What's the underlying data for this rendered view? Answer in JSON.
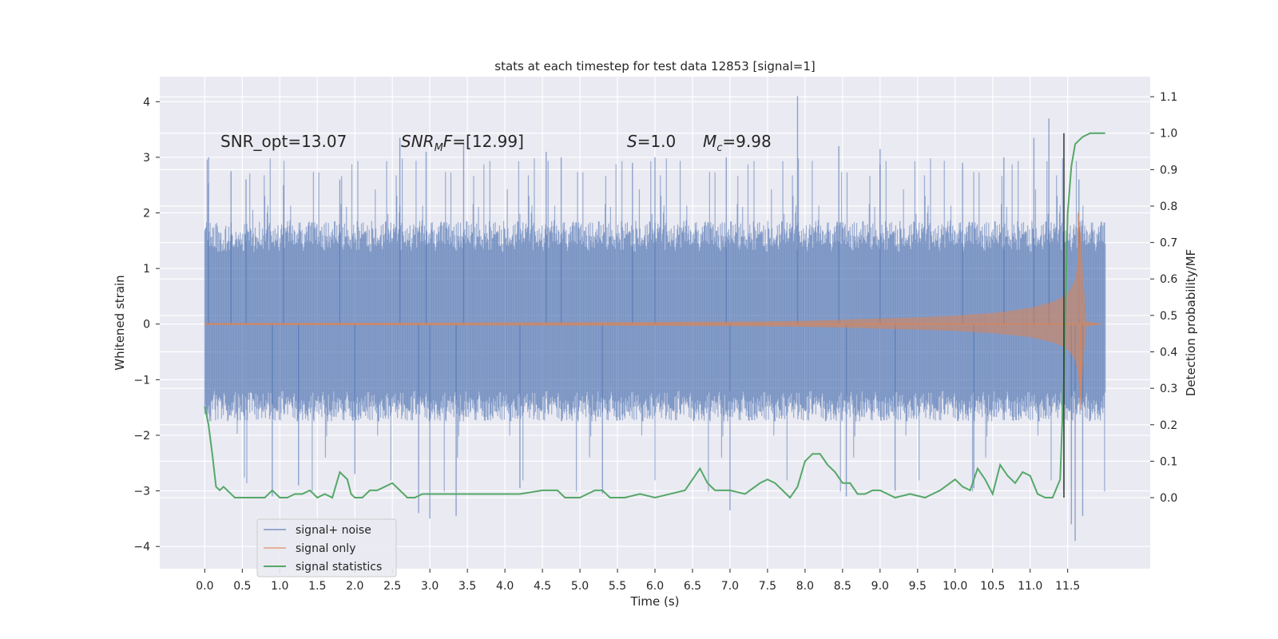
{
  "chart_data": {
    "type": "line",
    "title": "stats at each timestep for test data 12853 [signal=1]",
    "xlabel": "Time (s)",
    "ylabel_left": "Whitened strain",
    "ylabel_right": "Detection probability/MF",
    "xlim": [
      -0.6,
      12.6
    ],
    "ylim_left": [
      -4.4,
      4.45
    ],
    "ylim_right": [
      -0.195,
      1.155
    ],
    "x_ticks": [
      "0.0",
      "0.5",
      "1.0",
      "1.5",
      "2.0",
      "2.5",
      "3.0",
      "3.5",
      "4.0",
      "4.5",
      "5.0",
      "5.5",
      "6.0",
      "6.5",
      "7.0",
      "7.5",
      "8.0",
      "8.5",
      "9.0",
      "9.5",
      "10.0",
      "10.5",
      "11.0",
      "11.5"
    ],
    "y_ticks_left": [
      "4",
      "3",
      "2",
      "1",
      "0",
      "−1",
      "−2",
      "−3",
      "−4"
    ],
    "y_ticks_right": [
      "1.1",
      "1.0",
      "0.9",
      "0.8",
      "0.7",
      "0.6",
      "0.5",
      "0.4",
      "0.3",
      "0.2",
      "0.1",
      "0.0"
    ],
    "grid": true,
    "legend_position": "lower-left",
    "annotations": {
      "snr_opt": "SNR_opt=13.07",
      "snr_mf_name": "SNR",
      "snr_mf_sub": "M",
      "snr_mf_rest": "F",
      "snr_mf_value": "=[12.99]",
      "s_name": "S",
      "s_value": "=1.0",
      "mc_name": "M",
      "mc_sub": "c",
      "mc_value": "=9.98"
    },
    "marker_line_x": 11.45,
    "series": [
      {
        "name": "signal+ noise",
        "color": "#4c72b0",
        "envelope_upper_typical": 1.3,
        "envelope_lower_typical": -1.2,
        "peaks": [
          [
            0.05,
            3.0
          ],
          [
            0.35,
            2.75
          ],
          [
            0.55,
            2.6
          ],
          [
            1.05,
            2.5
          ],
          [
            1.8,
            2.6
          ],
          [
            2.6,
            3.35
          ],
          [
            2.95,
            3.1
          ],
          [
            3.45,
            3.25
          ],
          [
            4.55,
            3.1
          ],
          [
            4.75,
            3.0
          ],
          [
            5.7,
            2.9
          ],
          [
            6.0,
            3.0
          ],
          [
            6.95,
            3.0
          ],
          [
            7.9,
            4.1
          ],
          [
            8.45,
            3.2
          ],
          [
            9.0,
            3.15
          ],
          [
            10.1,
            2.9
          ],
          [
            10.65,
            3.0
          ],
          [
            11.05,
            3.35
          ],
          [
            11.25,
            3.7
          ],
          [
            11.65,
            2.6
          ]
        ],
        "troughs": [
          [
            0.9,
            -3.1
          ],
          [
            1.25,
            -2.9
          ],
          [
            2.0,
            -2.7
          ],
          [
            2.85,
            -3.4
          ],
          [
            3.0,
            -3.5
          ],
          [
            3.35,
            -3.45
          ],
          [
            4.2,
            -2.95
          ],
          [
            5.3,
            -3.05
          ],
          [
            7.0,
            -3.35
          ],
          [
            8.55,
            -3.1
          ],
          [
            9.2,
            -3.0
          ],
          [
            10.25,
            -2.95
          ],
          [
            11.45,
            -3.0
          ],
          [
            11.55,
            -3.6
          ],
          [
            11.6,
            -3.9
          ],
          [
            11.7,
            -3.45
          ]
        ]
      },
      {
        "name": "signal only",
        "color": "#dd8452",
        "x": [
          0.0,
          2.0,
          4.0,
          6.0,
          7.0,
          7.5,
          8.0,
          8.5,
          9.0,
          9.5,
          10.0,
          10.5,
          10.8,
          11.0,
          11.2,
          11.3,
          11.4,
          11.45,
          11.5,
          11.55,
          11.6,
          11.62,
          11.64,
          11.66,
          11.68,
          11.7,
          11.75,
          11.95
        ],
        "amplitude": [
          0.02,
          0.025,
          0.03,
          0.04,
          0.045,
          0.05,
          0.06,
          0.08,
          0.1,
          0.12,
          0.15,
          0.2,
          0.25,
          0.29,
          0.36,
          0.4,
          0.46,
          0.5,
          0.56,
          0.65,
          0.8,
          0.95,
          1.15,
          1.5,
          1.9,
          1.0,
          0.05,
          0.0
        ],
        "peak": [
          11.64,
          2.0
        ],
        "trough": [
          11.68,
          -1.55
        ]
      },
      {
        "name": "signal statistics",
        "color": "#55a868",
        "axis": "right",
        "x": [
          0.0,
          0.05,
          0.1,
          0.15,
          0.2,
          0.25,
          0.3,
          0.35,
          0.4,
          0.45,
          0.5,
          0.6,
          0.7,
          0.8,
          0.9,
          1.0,
          1.1,
          1.2,
          1.3,
          1.4,
          1.5,
          1.6,
          1.7,
          1.8,
          1.85,
          1.9,
          1.95,
          2.0,
          2.1,
          2.2,
          2.3,
          2.4,
          2.5,
          2.6,
          2.7,
          2.8,
          2.9,
          3.0,
          3.2,
          3.5,
          3.8,
          4.0,
          4.2,
          4.5,
          4.7,
          4.8,
          5.0,
          5.2,
          5.3,
          5.4,
          5.5,
          5.6,
          5.8,
          6.0,
          6.2,
          6.4,
          6.5,
          6.6,
          6.7,
          6.8,
          6.9,
          7.0,
          7.2,
          7.4,
          7.5,
          7.6,
          7.7,
          7.8,
          7.9,
          8.0,
          8.1,
          8.2,
          8.3,
          8.4,
          8.5,
          8.6,
          8.7,
          8.8,
          8.9,
          9.0,
          9.2,
          9.4,
          9.6,
          9.8,
          10.0,
          10.1,
          10.2,
          10.3,
          10.4,
          10.5,
          10.6,
          10.7,
          10.8,
          10.9,
          11.0,
          11.1,
          11.2,
          11.3,
          11.4,
          11.45,
          11.5,
          11.55,
          11.6,
          11.7,
          11.8,
          11.9,
          12.0
        ],
        "y": [
          0.25,
          0.2,
          0.12,
          0.03,
          0.02,
          0.03,
          0.02,
          0.01,
          0.0,
          0.0,
          0.0,
          0.0,
          0.0,
          0.0,
          0.02,
          0.0,
          0.0,
          0.01,
          0.01,
          0.02,
          0.0,
          0.01,
          0.0,
          0.07,
          0.06,
          0.05,
          0.01,
          0.0,
          0.0,
          0.02,
          0.02,
          0.03,
          0.04,
          0.02,
          0.0,
          0.0,
          0.01,
          0.01,
          0.01,
          0.01,
          0.01,
          0.01,
          0.01,
          0.02,
          0.02,
          0.0,
          0.0,
          0.02,
          0.02,
          0.0,
          0.0,
          0.0,
          0.01,
          0.0,
          0.01,
          0.02,
          0.05,
          0.08,
          0.04,
          0.02,
          0.02,
          0.02,
          0.01,
          0.04,
          0.05,
          0.04,
          0.02,
          0.0,
          0.03,
          0.1,
          0.12,
          0.12,
          0.09,
          0.07,
          0.04,
          0.04,
          0.01,
          0.01,
          0.02,
          0.02,
          0.0,
          0.01,
          0.0,
          0.02,
          0.05,
          0.03,
          0.02,
          0.08,
          0.05,
          0.01,
          0.09,
          0.06,
          0.04,
          0.07,
          0.06,
          0.01,
          0.0,
          0.0,
          0.05,
          0.33,
          0.78,
          0.91,
          0.97,
          0.99,
          1.0,
          1.0,
          1.0
        ]
      }
    ]
  }
}
